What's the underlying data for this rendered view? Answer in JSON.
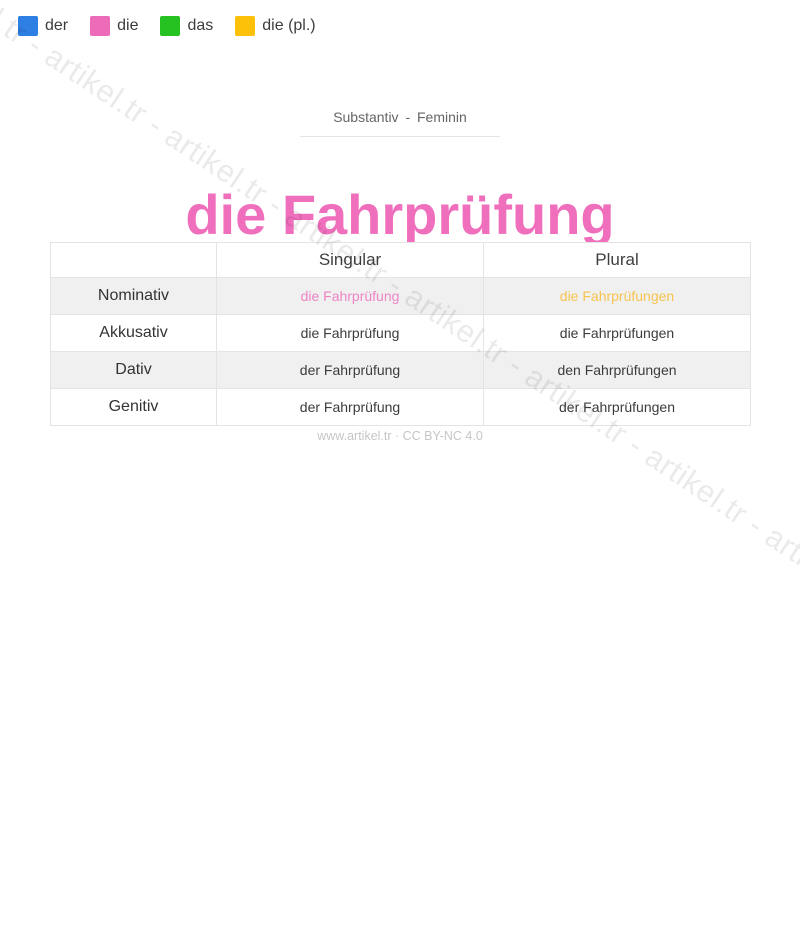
{
  "legend": {
    "items": [
      {
        "label": "der",
        "color": "#2e7fe3"
      },
      {
        "label": "die",
        "color": "#ed6cb9"
      },
      {
        "label": "das",
        "color": "#25c221"
      },
      {
        "label": "die (pl.)",
        "color": "#fcc108"
      }
    ]
  },
  "header": {
    "category": "Substantiv - Feminin",
    "title": "die Fahrprüfung",
    "title_color": "#ef6fbc"
  },
  "table": {
    "columns": {
      "case": "",
      "singular": "Singular",
      "plural": "Plural"
    },
    "rows": [
      {
        "case": "Nominativ",
        "singular": "die Fahrprüfung",
        "plural": "die Fahrprüfungen",
        "singular_color": "#ee85c5",
        "plural_color": "#f6c44e"
      },
      {
        "case": "Akkusativ",
        "singular": "die Fahrprüfung",
        "plural": "die Fahrprüfungen"
      },
      {
        "case": "Dativ",
        "singular": "der Fahrprüfung",
        "plural": "den Fahrprüfungen"
      },
      {
        "case": "Genitiv",
        "singular": "der Fahrprüfung",
        "plural": "der Fahrprüfungen"
      }
    ]
  },
  "footer": {
    "credit": "www.artikel.tr · CC BY-NC 4.0"
  },
  "watermark": {
    "text": "artikel.tr - artikel.tr - artikel.tr - artikel.tr - artikel.tr - artikel.tr - artikel.tr - artikel.tr - artikel.tr - artikel.tr - artikel.tr - artikel.tr"
  }
}
